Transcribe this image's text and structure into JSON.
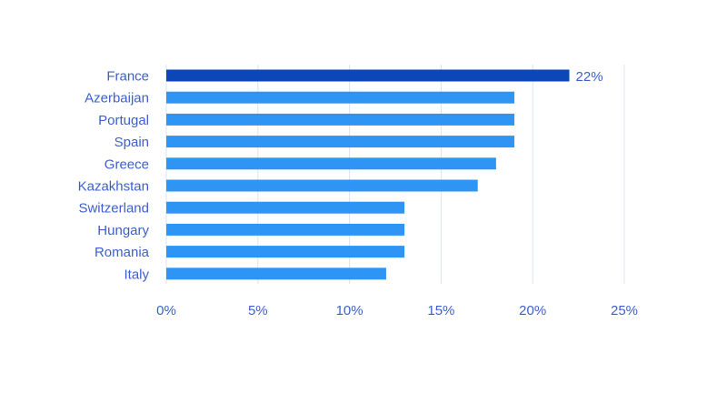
{
  "chart_data": {
    "type": "bar",
    "orientation": "horizontal",
    "categories": [
      "France",
      "Azerbaijan",
      "Portugal",
      "Spain",
      "Greece",
      "Kazakhstan",
      "Switzerland",
      "Hungary",
      "Romania",
      "Italy"
    ],
    "values": [
      22,
      19,
      19,
      19,
      18,
      17,
      13,
      13,
      13,
      12
    ],
    "highlight_index": 0,
    "data_labels": [
      {
        "index": 0,
        "text": "22%"
      }
    ],
    "x_ticks": [
      "0%",
      "5%",
      "10%",
      "15%",
      "20%",
      "25%"
    ],
    "xlim": [
      0,
      25
    ],
    "grid": true,
    "legend": "none"
  },
  "colors": {
    "bar": "#2f95f5",
    "highlight_bar": "#0b47b6",
    "label_text": "#3d5fcc",
    "gridline": "#dde3ee"
  }
}
